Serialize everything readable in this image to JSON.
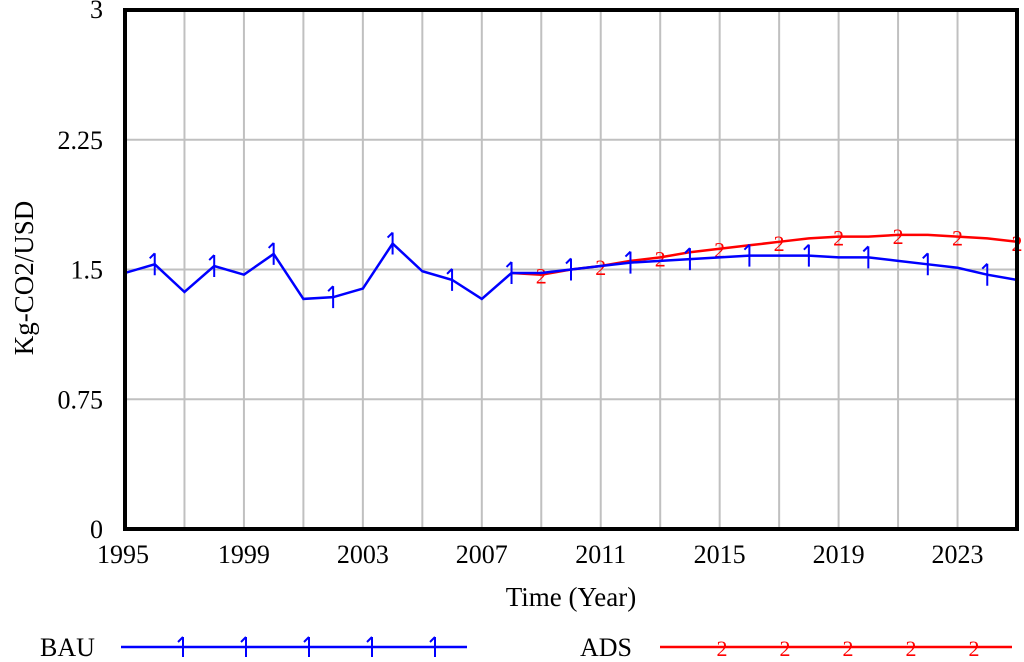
{
  "chart_data": {
    "type": "line",
    "xlabel": "Time (Year)",
    "ylabel": "Kg-CO2/USD",
    "xlim": [
      1995,
      2025
    ],
    "ylim": [
      0,
      3
    ],
    "x_ticks": [
      "1995",
      "1999",
      "2003",
      "2007",
      "2011",
      "2015",
      "2019",
      "2023"
    ],
    "y_ticks": [
      "0",
      "0.75",
      "1.5",
      "2.25",
      "3"
    ],
    "grid": true,
    "legend_position": "bottom",
    "series": [
      {
        "name": "BAU",
        "marker": "1",
        "color": "#0000ff",
        "x": [
          1995,
          1996,
          1997,
          1998,
          1999,
          2000,
          2001,
          2002,
          2003,
          2004,
          2005,
          2006,
          2007,
          2008,
          2009,
          2010,
          2011,
          2012,
          2013,
          2014,
          2015,
          2016,
          2017,
          2018,
          2019,
          2020,
          2021,
          2022,
          2023,
          2024,
          2025
        ],
        "y": [
          1.48,
          1.53,
          1.37,
          1.52,
          1.47,
          1.59,
          1.33,
          1.34,
          1.39,
          1.65,
          1.49,
          1.44,
          1.33,
          1.48,
          1.48,
          1.5,
          1.52,
          1.54,
          1.55,
          1.56,
          1.57,
          1.58,
          1.58,
          1.58,
          1.57,
          1.57,
          1.55,
          1.53,
          1.51,
          1.47,
          1.44
        ]
      },
      {
        "name": "ADS",
        "marker": "2",
        "color": "#ff0000",
        "x": [
          2008,
          2009,
          2010,
          2011,
          2012,
          2013,
          2014,
          2015,
          2016,
          2017,
          2018,
          2019,
          2020,
          2021,
          2022,
          2023,
          2024,
          2025
        ],
        "y": [
          1.48,
          1.47,
          1.5,
          1.52,
          1.55,
          1.57,
          1.6,
          1.62,
          1.64,
          1.66,
          1.68,
          1.69,
          1.69,
          1.7,
          1.7,
          1.69,
          1.68,
          1.66
        ]
      }
    ]
  }
}
